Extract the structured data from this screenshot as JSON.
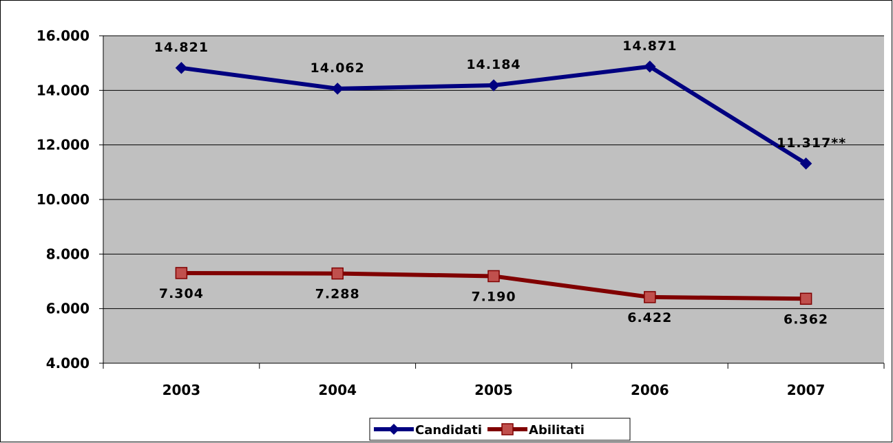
{
  "chart_data": {
    "type": "line",
    "title": "",
    "xlabel": "",
    "ylabel": "",
    "categories": [
      "2003",
      "2004",
      "2005",
      "2006",
      "2007"
    ],
    "ylim": [
      4000,
      16000
    ],
    "yticks": [
      4000,
      6000,
      8000,
      10000,
      12000,
      14000,
      16000
    ],
    "ytick_labels": [
      "4.000",
      "6.000",
      "8.000",
      "10.000",
      "12.000",
      "14.000",
      "16.000"
    ],
    "grid": true,
    "legend_position": "bottom",
    "series": [
      {
        "name": "Candidati",
        "values": [
          14821,
          14062,
          14184,
          14871,
          11317
        ],
        "labels": [
          "14.821",
          "14.062",
          "14.184",
          "14.871",
          "11.317**"
        ],
        "label_side": "above",
        "color": "#000080",
        "marker": "diamond"
      },
      {
        "name": "Abilitati",
        "values": [
          7304,
          7288,
          7190,
          6422,
          6362
        ],
        "labels": [
          "7.304",
          "7.288",
          "7.190",
          "6.422",
          "6.362"
        ],
        "label_side": "below",
        "color": "#800000",
        "marker_color": "#C0504D",
        "marker": "square"
      }
    ],
    "plot_background": "#C0C0C0"
  }
}
